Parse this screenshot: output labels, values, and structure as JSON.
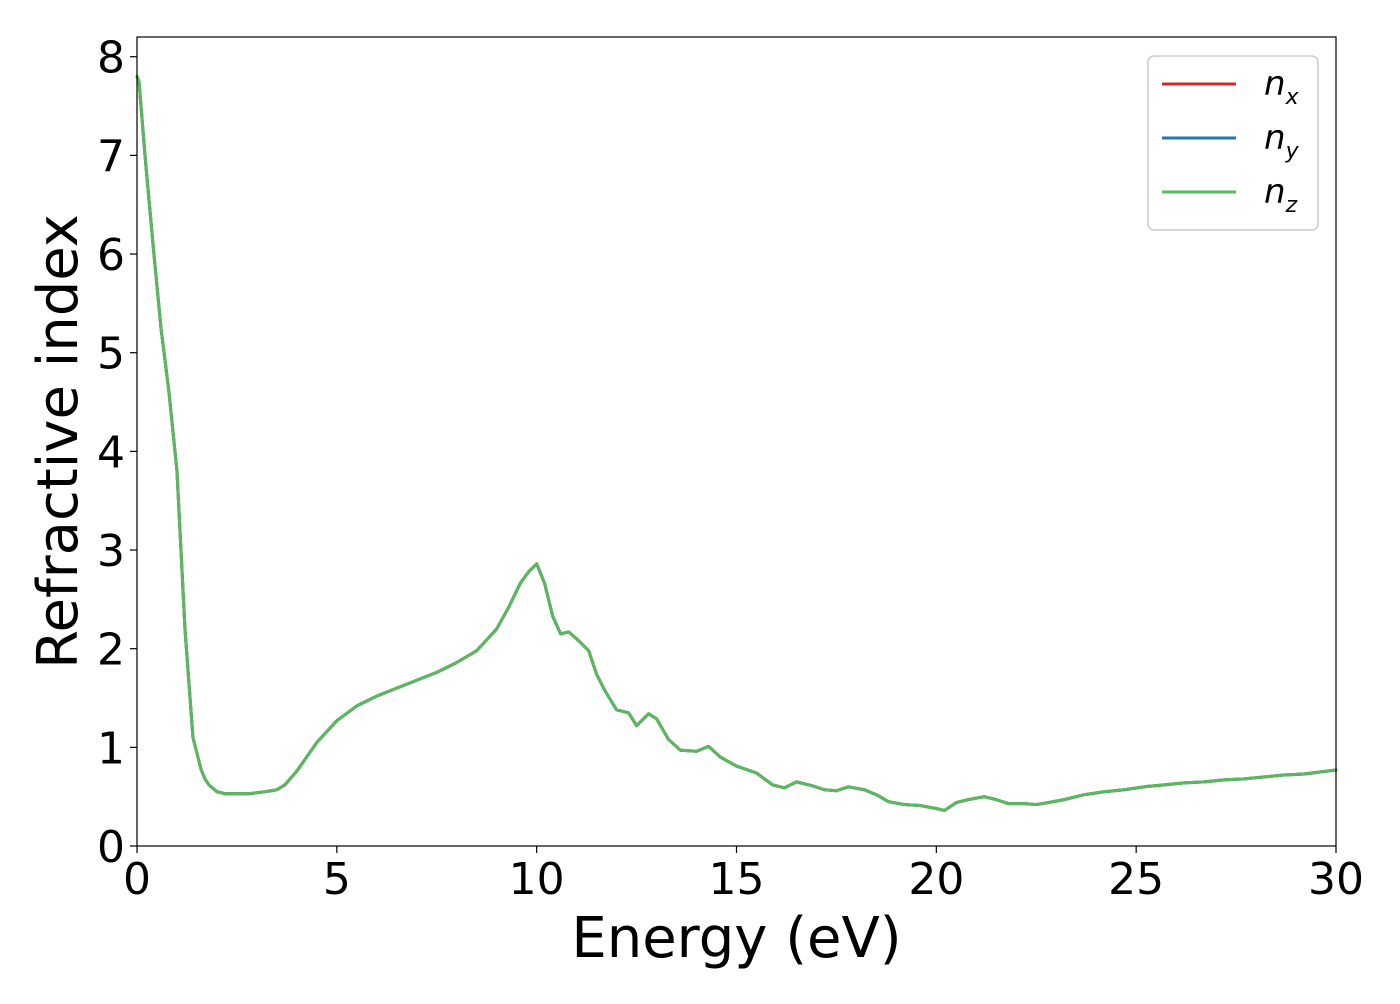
{
  "chart_data": {
    "type": "line",
    "title": "",
    "xlabel": "Energy (eV)",
    "ylabel": "Refractive index",
    "xlim": [
      0,
      30
    ],
    "ylim": [
      0,
      8.2
    ],
    "xticks": [
      0,
      5,
      10,
      15,
      20,
      25,
      30
    ],
    "yticks": [
      0,
      1,
      2,
      3,
      4,
      5,
      6,
      7,
      8
    ],
    "grid": false,
    "legend_position": "top-right",
    "x": [
      0,
      0.05,
      0.2,
      0.4,
      0.6,
      0.8,
      1.0,
      1.2,
      1.4,
      1.6,
      1.7,
      1.8,
      2.0,
      2.2,
      2.5,
      2.8,
      3.0,
      3.2,
      3.5,
      3.7,
      4.0,
      4.5,
      5.0,
      5.5,
      6.0,
      6.5,
      7.0,
      7.5,
      8.0,
      8.5,
      9.0,
      9.3,
      9.6,
      9.8,
      10.0,
      10.2,
      10.4,
      10.6,
      10.8,
      11.0,
      11.3,
      11.5,
      11.7,
      12.0,
      12.3,
      12.5,
      12.8,
      13.0,
      13.3,
      13.6,
      14.0,
      14.3,
      14.6,
      15.0,
      15.5,
      15.9,
      16.2,
      16.5,
      16.9,
      17.2,
      17.5,
      17.8,
      18.2,
      18.5,
      18.8,
      19.2,
      19.6,
      20.0,
      20.2,
      20.5,
      20.8,
      21.2,
      21.5,
      21.8,
      22.2,
      22.5,
      22.8,
      23.2,
      23.7,
      24.2,
      24.7,
      25.2,
      25.7,
      26.2,
      26.7,
      27.2,
      27.7,
      28.2,
      28.7,
      29.2,
      29.6,
      30.0
    ],
    "series": [
      {
        "name": "n_x",
        "color": "#d62728",
        "values": [
          7.8,
          7.75,
          7.0,
          6.1,
          5.25,
          4.6,
          3.8,
          2.2,
          1.1,
          0.78,
          0.68,
          0.62,
          0.55,
          0.53,
          0.53,
          0.53,
          0.54,
          0.55,
          0.57,
          0.62,
          0.76,
          1.05,
          1.27,
          1.42,
          1.52,
          1.6,
          1.68,
          1.76,
          1.86,
          1.98,
          2.2,
          2.42,
          2.67,
          2.78,
          2.86,
          2.66,
          2.33,
          2.15,
          2.17,
          2.1,
          1.98,
          1.74,
          1.58,
          1.38,
          1.35,
          1.22,
          1.34,
          1.29,
          1.08,
          0.97,
          0.96,
          1.01,
          0.9,
          0.81,
          0.74,
          0.62,
          0.59,
          0.65,
          0.61,
          0.57,
          0.56,
          0.6,
          0.57,
          0.52,
          0.45,
          0.42,
          0.41,
          0.38,
          0.36,
          0.44,
          0.47,
          0.5,
          0.47,
          0.43,
          0.43,
          0.42,
          0.44,
          0.47,
          0.52,
          0.55,
          0.57,
          0.6,
          0.62,
          0.64,
          0.65,
          0.67,
          0.68,
          0.7,
          0.72,
          0.73,
          0.75,
          0.77
        ]
      },
      {
        "name": "n_y",
        "color": "#1f77b4",
        "values": [
          7.8,
          7.75,
          7.0,
          6.1,
          5.25,
          4.6,
          3.8,
          2.2,
          1.1,
          0.78,
          0.68,
          0.62,
          0.55,
          0.53,
          0.53,
          0.53,
          0.54,
          0.55,
          0.57,
          0.62,
          0.76,
          1.05,
          1.27,
          1.42,
          1.52,
          1.6,
          1.68,
          1.76,
          1.86,
          1.98,
          2.2,
          2.42,
          2.67,
          2.78,
          2.86,
          2.66,
          2.33,
          2.15,
          2.17,
          2.1,
          1.98,
          1.74,
          1.58,
          1.38,
          1.35,
          1.22,
          1.34,
          1.29,
          1.08,
          0.97,
          0.96,
          1.01,
          0.9,
          0.81,
          0.74,
          0.62,
          0.59,
          0.65,
          0.61,
          0.57,
          0.56,
          0.6,
          0.57,
          0.52,
          0.45,
          0.42,
          0.41,
          0.38,
          0.36,
          0.44,
          0.47,
          0.5,
          0.47,
          0.43,
          0.43,
          0.42,
          0.44,
          0.47,
          0.52,
          0.55,
          0.57,
          0.6,
          0.62,
          0.64,
          0.65,
          0.67,
          0.68,
          0.7,
          0.72,
          0.73,
          0.75,
          0.77
        ]
      },
      {
        "name": "n_z",
        "color": "#5cb85c",
        "values": [
          7.8,
          7.75,
          7.0,
          6.1,
          5.25,
          4.6,
          3.8,
          2.2,
          1.1,
          0.78,
          0.68,
          0.62,
          0.55,
          0.53,
          0.53,
          0.53,
          0.54,
          0.55,
          0.57,
          0.62,
          0.76,
          1.05,
          1.27,
          1.42,
          1.52,
          1.6,
          1.68,
          1.76,
          1.86,
          1.98,
          2.2,
          2.42,
          2.67,
          2.78,
          2.86,
          2.66,
          2.33,
          2.15,
          2.17,
          2.1,
          1.98,
          1.74,
          1.58,
          1.38,
          1.35,
          1.22,
          1.34,
          1.29,
          1.08,
          0.97,
          0.96,
          1.01,
          0.9,
          0.81,
          0.74,
          0.62,
          0.59,
          0.65,
          0.61,
          0.57,
          0.56,
          0.6,
          0.57,
          0.52,
          0.45,
          0.42,
          0.41,
          0.38,
          0.36,
          0.44,
          0.47,
          0.5,
          0.47,
          0.43,
          0.43,
          0.42,
          0.44,
          0.47,
          0.52,
          0.55,
          0.57,
          0.6,
          0.62,
          0.64,
          0.65,
          0.67,
          0.68,
          0.7,
          0.72,
          0.73,
          0.75,
          0.77
        ]
      }
    ],
    "legend": [
      {
        "base": "n",
        "sub": "x",
        "color": "#d62728"
      },
      {
        "base": "n",
        "sub": "y",
        "color": "#1f77b4"
      },
      {
        "base": "n",
        "sub": "z",
        "color": "#5cb85c"
      }
    ]
  }
}
